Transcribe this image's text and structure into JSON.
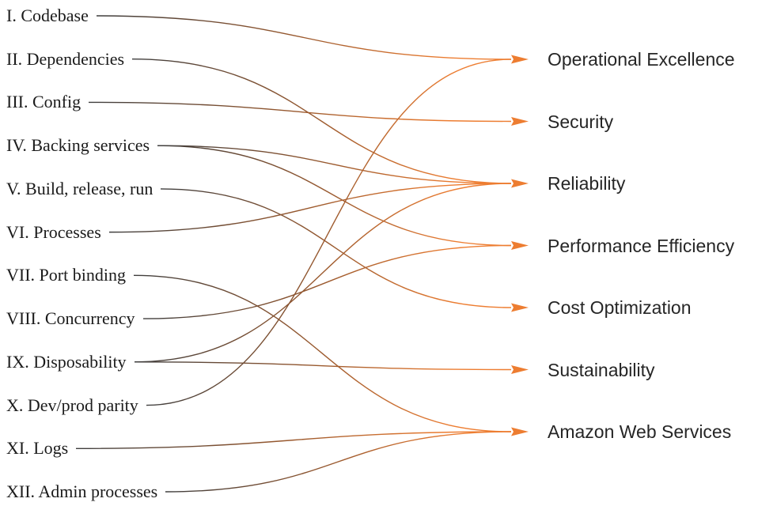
{
  "diagram": {
    "left_items": [
      "I. Codebase",
      "II. Dependencies",
      "III. Config",
      "IV. Backing services",
      "V. Build, release, run",
      "VI. Processes",
      "VII. Port binding",
      "VIII. Concurrency",
      "IX. Disposability",
      "X. Dev/prod parity",
      "XI. Logs",
      "XII. Admin processes"
    ],
    "right_items": [
      "Operational Excellence",
      "Security",
      "Reliability",
      "Performance Efficiency",
      "Cost Optimization",
      "Sustainability",
      "Amazon Web Services"
    ],
    "connections": [
      {
        "from": "I. Codebase",
        "to": "Operational Excellence"
      },
      {
        "from": "II. Dependencies",
        "to": "Reliability"
      },
      {
        "from": "III. Config",
        "to": "Security"
      },
      {
        "from": "IV. Backing services",
        "to": "Reliability"
      },
      {
        "from": "IV. Backing services",
        "to": "Performance Efficiency"
      },
      {
        "from": "V. Build, release, run",
        "to": "Cost Optimization"
      },
      {
        "from": "VI. Processes",
        "to": "Reliability"
      },
      {
        "from": "VII. Port binding",
        "to": "Amazon Web Services"
      },
      {
        "from": "VIII. Concurrency",
        "to": "Performance Efficiency"
      },
      {
        "from": "IX. Disposability",
        "to": "Sustainability"
      },
      {
        "from": "IX. Disposability",
        "to": "Reliability"
      },
      {
        "from": "X. Dev/prod parity",
        "to": "Operational Excellence"
      },
      {
        "from": "XI. Logs",
        "to": "Amazon Web Services"
      },
      {
        "from": "XII. Admin processes",
        "to": "Amazon Web Services"
      }
    ],
    "colors": {
      "line_start": "#3d3d3d",
      "line_mid": "#9c5a2e",
      "line_end": "#ed7d31",
      "arrow": "#ed7d31",
      "left_text": "#1b1b1b",
      "right_text": "#262626",
      "background": "#ffffff"
    }
  }
}
